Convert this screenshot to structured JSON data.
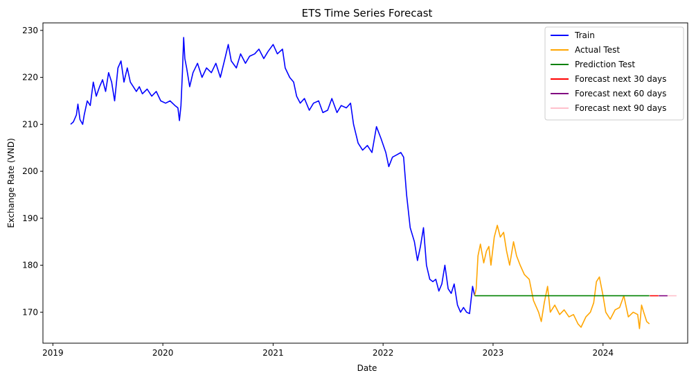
{
  "chart_data": {
    "type": "line",
    "title": "ETS Time Series Forecast",
    "xlabel": "Date",
    "ylabel": "Exchange Rate (VND)",
    "x_axis": {
      "kind": "date",
      "range": [
        "2018-11-29",
        "2024-10-08"
      ],
      "ticks": [
        {
          "date": "2019-01-01",
          "label": "2019"
        },
        {
          "date": "2020-01-01",
          "label": "2020"
        },
        {
          "date": "2021-01-01",
          "label": "2021"
        },
        {
          "date": "2022-01-01",
          "label": "2022"
        },
        {
          "date": "2023-01-01",
          "label": "2023"
        },
        {
          "date": "2024-01-01",
          "label": "2024"
        }
      ]
    },
    "y_axis": {
      "range": [
        163.4,
        231.6
      ],
      "ticks": [
        170,
        180,
        190,
        200,
        210,
        220,
        230
      ]
    },
    "grid": false,
    "legend_position": "top-right",
    "series": [
      {
        "name": "Train",
        "color": "#0000ff",
        "points": [
          [
            "2019-03-01",
            210
          ],
          [
            "2019-03-10",
            210.5
          ],
          [
            "2019-03-20",
            212
          ],
          [
            "2019-03-25",
            214.3
          ],
          [
            "2019-04-01",
            211
          ],
          [
            "2019-04-10",
            210
          ],
          [
            "2019-04-15",
            212
          ],
          [
            "2019-04-25",
            215
          ],
          [
            "2019-05-05",
            214
          ],
          [
            "2019-05-15",
            219
          ],
          [
            "2019-05-25",
            216
          ],
          [
            "2019-06-05",
            218
          ],
          [
            "2019-06-15",
            219.5
          ],
          [
            "2019-06-25",
            217
          ],
          [
            "2019-07-05",
            221
          ],
          [
            "2019-07-15",
            219
          ],
          [
            "2019-07-25",
            215
          ],
          [
            "2019-08-05",
            222
          ],
          [
            "2019-08-15",
            223.5
          ],
          [
            "2019-08-25",
            219
          ],
          [
            "2019-09-05",
            222
          ],
          [
            "2019-09-15",
            219
          ],
          [
            "2019-09-25",
            218
          ],
          [
            "2019-10-05",
            217
          ],
          [
            "2019-10-15",
            218
          ],
          [
            "2019-10-25",
            216.5
          ],
          [
            "2019-11-10",
            217.5
          ],
          [
            "2019-11-25",
            216
          ],
          [
            "2019-12-10",
            217
          ],
          [
            "2019-12-25",
            215
          ],
          [
            "2020-01-10",
            214.5
          ],
          [
            "2020-01-25",
            215
          ],
          [
            "2020-02-10",
            214
          ],
          [
            "2020-02-20",
            213.5
          ],
          [
            "2020-02-25",
            210.8
          ],
          [
            "2020-03-01",
            214
          ],
          [
            "2020-03-06",
            221
          ],
          [
            "2020-03-10",
            228.5
          ],
          [
            "2020-03-14",
            224
          ],
          [
            "2020-03-20",
            222
          ],
          [
            "2020-03-30",
            218
          ],
          [
            "2020-04-10",
            221
          ],
          [
            "2020-04-25",
            223
          ],
          [
            "2020-05-10",
            220
          ],
          [
            "2020-05-25",
            222
          ],
          [
            "2020-06-10",
            221
          ],
          [
            "2020-06-25",
            223
          ],
          [
            "2020-07-10",
            220
          ],
          [
            "2020-07-25",
            224
          ],
          [
            "2020-08-05",
            227
          ],
          [
            "2020-08-15",
            223.5
          ],
          [
            "2020-09-01",
            222
          ],
          [
            "2020-09-15",
            225
          ],
          [
            "2020-10-01",
            223
          ],
          [
            "2020-10-15",
            224.5
          ],
          [
            "2020-11-01",
            225
          ],
          [
            "2020-11-15",
            226
          ],
          [
            "2020-12-01",
            224
          ],
          [
            "2020-12-15",
            225.5
          ],
          [
            "2021-01-01",
            227
          ],
          [
            "2021-01-15",
            225
          ],
          [
            "2021-02-01",
            226
          ],
          [
            "2021-02-10",
            222
          ],
          [
            "2021-02-25",
            220
          ],
          [
            "2021-03-10",
            219
          ],
          [
            "2021-03-20",
            216
          ],
          [
            "2021-04-01",
            214.5
          ],
          [
            "2021-04-15",
            215.5
          ],
          [
            "2021-05-01",
            213
          ],
          [
            "2021-05-15",
            214.5
          ],
          [
            "2021-06-01",
            215
          ],
          [
            "2021-06-15",
            212.5
          ],
          [
            "2021-07-01",
            213
          ],
          [
            "2021-07-15",
            215.5
          ],
          [
            "2021-08-01",
            212.5
          ],
          [
            "2021-08-15",
            214
          ],
          [
            "2021-09-01",
            213.5
          ],
          [
            "2021-09-15",
            214.5
          ],
          [
            "2021-09-25",
            210
          ],
          [
            "2021-10-10",
            206
          ],
          [
            "2021-10-25",
            204.5
          ],
          [
            "2021-11-10",
            205.5
          ],
          [
            "2021-11-25",
            204
          ],
          [
            "2021-12-10",
            209.5
          ],
          [
            "2021-12-25",
            207
          ],
          [
            "2022-01-10",
            204
          ],
          [
            "2022-01-20",
            201
          ],
          [
            "2022-02-01",
            203
          ],
          [
            "2022-02-15",
            203.5
          ],
          [
            "2022-03-01",
            204
          ],
          [
            "2022-03-10",
            203
          ],
          [
            "2022-03-20",
            195
          ],
          [
            "2022-04-01",
            188
          ],
          [
            "2022-04-15",
            185
          ],
          [
            "2022-04-25",
            181
          ],
          [
            "2022-05-05",
            184
          ],
          [
            "2022-05-15",
            188
          ],
          [
            "2022-05-25",
            180
          ],
          [
            "2022-06-05",
            177
          ],
          [
            "2022-06-15",
            176.5
          ],
          [
            "2022-06-25",
            177
          ],
          [
            "2022-07-05",
            174.5
          ],
          [
            "2022-07-15",
            176
          ],
          [
            "2022-07-25",
            180
          ],
          [
            "2022-08-05",
            175
          ],
          [
            "2022-08-15",
            174
          ],
          [
            "2022-08-25",
            176
          ],
          [
            "2022-09-05",
            171.5
          ],
          [
            "2022-09-15",
            170
          ],
          [
            "2022-09-25",
            171
          ],
          [
            "2022-10-05",
            170
          ],
          [
            "2022-10-15",
            169.7
          ],
          [
            "2022-10-25",
            175.5
          ],
          [
            "2022-11-01",
            173.5
          ]
        ]
      },
      {
        "name": "Actual Test",
        "color": "#ffa500",
        "points": [
          [
            "2022-11-01",
            173.5
          ],
          [
            "2022-11-06",
            175
          ],
          [
            "2022-11-12",
            182
          ],
          [
            "2022-11-20",
            184.5
          ],
          [
            "2022-12-01",
            180.5
          ],
          [
            "2022-12-10",
            183
          ],
          [
            "2022-12-18",
            184
          ],
          [
            "2022-12-25",
            180
          ],
          [
            "2023-01-05",
            186
          ],
          [
            "2023-01-15",
            188.5
          ],
          [
            "2023-01-25",
            186
          ],
          [
            "2023-02-05",
            187
          ],
          [
            "2023-02-15",
            183
          ],
          [
            "2023-02-25",
            180
          ],
          [
            "2023-03-10",
            185
          ],
          [
            "2023-03-20",
            182
          ],
          [
            "2023-04-01",
            180
          ],
          [
            "2023-04-15",
            178
          ],
          [
            "2023-05-01",
            177
          ],
          [
            "2023-05-15",
            172.5
          ],
          [
            "2023-06-01",
            170
          ],
          [
            "2023-06-10",
            168
          ],
          [
            "2023-06-20",
            172
          ],
          [
            "2023-07-01",
            175.5
          ],
          [
            "2023-07-10",
            170
          ],
          [
            "2023-07-25",
            171.5
          ],
          [
            "2023-08-10",
            169.5
          ],
          [
            "2023-08-25",
            170.5
          ],
          [
            "2023-09-10",
            169
          ],
          [
            "2023-09-25",
            169.5
          ],
          [
            "2023-10-10",
            167.5
          ],
          [
            "2023-10-20",
            166.8
          ],
          [
            "2023-11-05",
            169
          ],
          [
            "2023-11-20",
            170
          ],
          [
            "2023-12-01",
            172
          ],
          [
            "2023-12-10",
            176.5
          ],
          [
            "2023-12-20",
            177.5
          ],
          [
            "2024-01-01",
            173.5
          ],
          [
            "2024-01-10",
            170
          ],
          [
            "2024-01-25",
            168.5
          ],
          [
            "2024-02-10",
            170.5
          ],
          [
            "2024-02-25",
            171
          ],
          [
            "2024-03-10",
            173.5
          ],
          [
            "2024-03-25",
            169
          ],
          [
            "2024-04-10",
            170
          ],
          [
            "2024-04-25",
            169.5
          ],
          [
            "2024-05-01",
            166.5
          ],
          [
            "2024-05-08",
            171.5
          ],
          [
            "2024-05-15",
            170
          ],
          [
            "2024-05-25",
            168
          ],
          [
            "2024-06-03",
            167.5
          ]
        ]
      },
      {
        "name": "Prediction Test",
        "color": "#008000",
        "points": [
          [
            "2022-11-01",
            173.5
          ],
          [
            "2024-06-03",
            173.5
          ]
        ]
      },
      {
        "name": "Forecast next 30 days",
        "color": "#ff0000",
        "points": [
          [
            "2024-06-04",
            173.5
          ],
          [
            "2024-07-03",
            173.5
          ]
        ]
      },
      {
        "name": "Forecast next 60 days",
        "color": "#800080",
        "points": [
          [
            "2024-07-04",
            173.5
          ],
          [
            "2024-08-02",
            173.5
          ]
        ]
      },
      {
        "name": "Forecast next 90 days",
        "color": "#ffc0cb",
        "points": [
          [
            "2024-08-03",
            173.5
          ],
          [
            "2024-09-01",
            173.5
          ]
        ]
      }
    ]
  }
}
